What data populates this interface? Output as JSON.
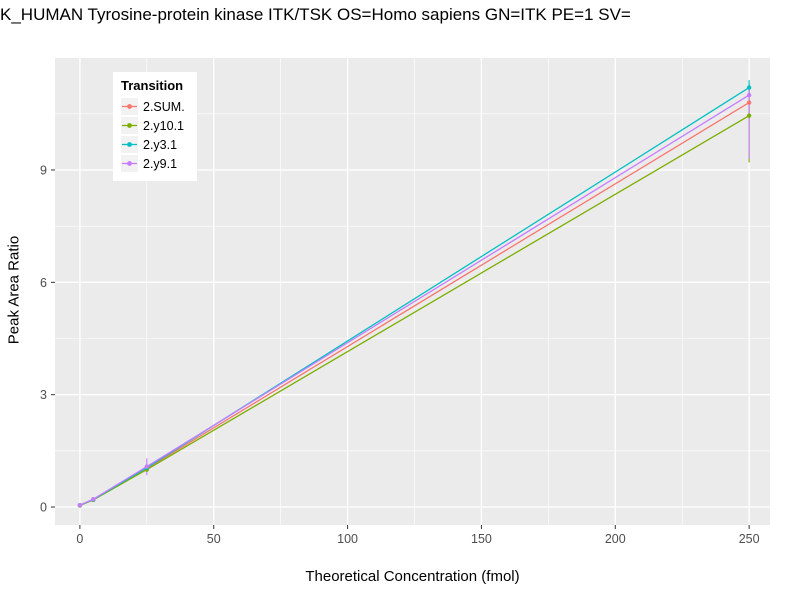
{
  "chart_data": {
    "type": "line",
    "title": "K_HUMAN Tyrosine-protein kinase ITK/TSK OS=Homo sapiens GN=ITK PE=1 SV=",
    "xlabel": "Theoretical Concentration (fmol)",
    "ylabel": "Peak Area Ratio",
    "legend_title": "Transition",
    "legend_position": "top-left-inside",
    "grid": true,
    "panel_color": "#EBEBEB",
    "grid_color": "#FFFFFF",
    "x_domain": [
      -9.3,
      257.8
    ],
    "y_domain": [
      -0.48,
      11.99
    ],
    "x_ticks": [
      0,
      50,
      100,
      150,
      200,
      250
    ],
    "x_minor": [
      25,
      75,
      125,
      175,
      225
    ],
    "y_ticks": [
      0,
      3,
      6,
      9
    ],
    "y_minor": [
      1.5,
      4.5,
      7.5,
      10.5
    ],
    "series": [
      {
        "name": "2.SUM.",
        "color": "#F8766D",
        "x": [
          0,
          5,
          25,
          250
        ],
        "values": [
          0.05,
          0.2,
          1.03,
          10.8
        ],
        "error_bars": [
          {
            "x": 250,
            "ymin": 10.5,
            "ymax": 11.1
          }
        ]
      },
      {
        "name": "2.y10.1",
        "color": "#7CAE00",
        "x": [
          0,
          5,
          25,
          250
        ],
        "values": [
          0.04,
          0.19,
          1.0,
          10.45
        ],
        "error_bars": [
          {
            "x": 250,
            "ymin": 9.2,
            "ymax": 11.3
          }
        ]
      },
      {
        "name": "2.y3.1",
        "color": "#00BFC4",
        "x": [
          0,
          5,
          25,
          250
        ],
        "values": [
          0.05,
          0.2,
          1.05,
          11.2
        ],
        "error_bars": [
          {
            "x": 250,
            "ymin": 11.0,
            "ymax": 11.4
          }
        ]
      },
      {
        "name": "2.y9.1",
        "color": "#C77CFF",
        "x": [
          0,
          5,
          25,
          250
        ],
        "values": [
          0.05,
          0.21,
          1.08,
          11.0
        ],
        "error_bars": [
          {
            "x": 25,
            "ymin": 0.85,
            "ymax": 1.3
          },
          {
            "x": 250,
            "ymin": 9.3,
            "ymax": 11.2
          }
        ]
      }
    ]
  }
}
